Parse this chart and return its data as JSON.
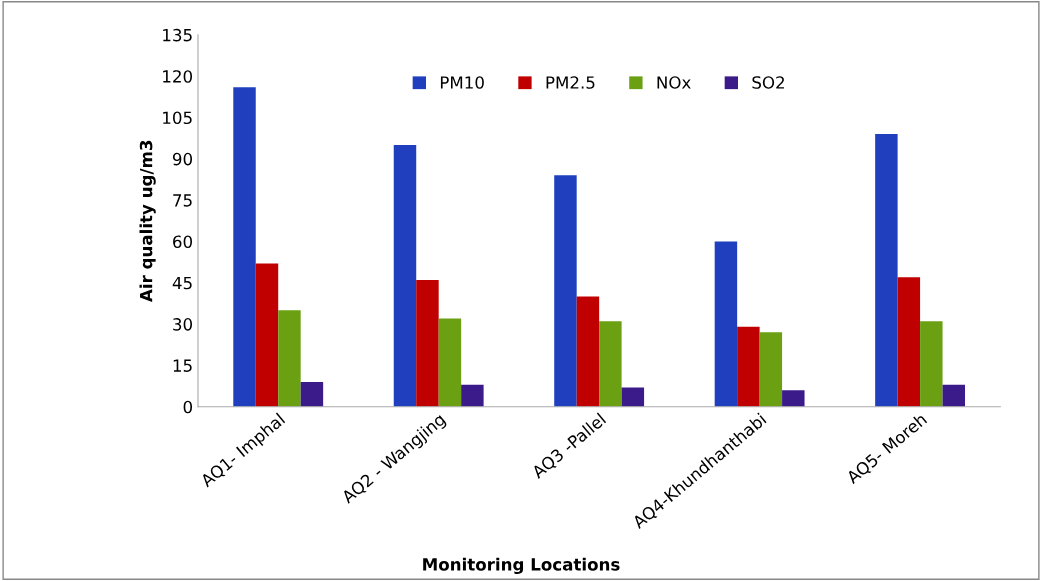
{
  "chart_data": {
    "type": "bar",
    "xlabel": "Monitoring Locations",
    "ylabel": "Air quality ug/m3",
    "categories": [
      "AQ1- Imphal",
      "AQ2 - Wangjing",
      "AQ3 -Pallel",
      "AQ4-Khundhanthabi",
      "AQ5- Moreh"
    ],
    "series": [
      {
        "name": "PM10",
        "color": "#1f3fbf",
        "values": [
          116,
          95,
          84,
          60,
          99
        ]
      },
      {
        "name": "PM2.5",
        "color": "#c00000",
        "values": [
          52,
          46,
          40,
          29,
          47
        ]
      },
      {
        "name": "NOx",
        "color": "#6aa012",
        "values": [
          35,
          32,
          31,
          27,
          31
        ]
      },
      {
        "name": "SO2",
        "color": "#3b1a8a",
        "values": [
          9,
          8,
          7,
          6,
          8
        ]
      }
    ],
    "ylim": [
      0,
      135
    ],
    "yticks": [
      0,
      15,
      30,
      45,
      60,
      75,
      90,
      105,
      120,
      135
    ],
    "grid": false,
    "legend": "top"
  }
}
